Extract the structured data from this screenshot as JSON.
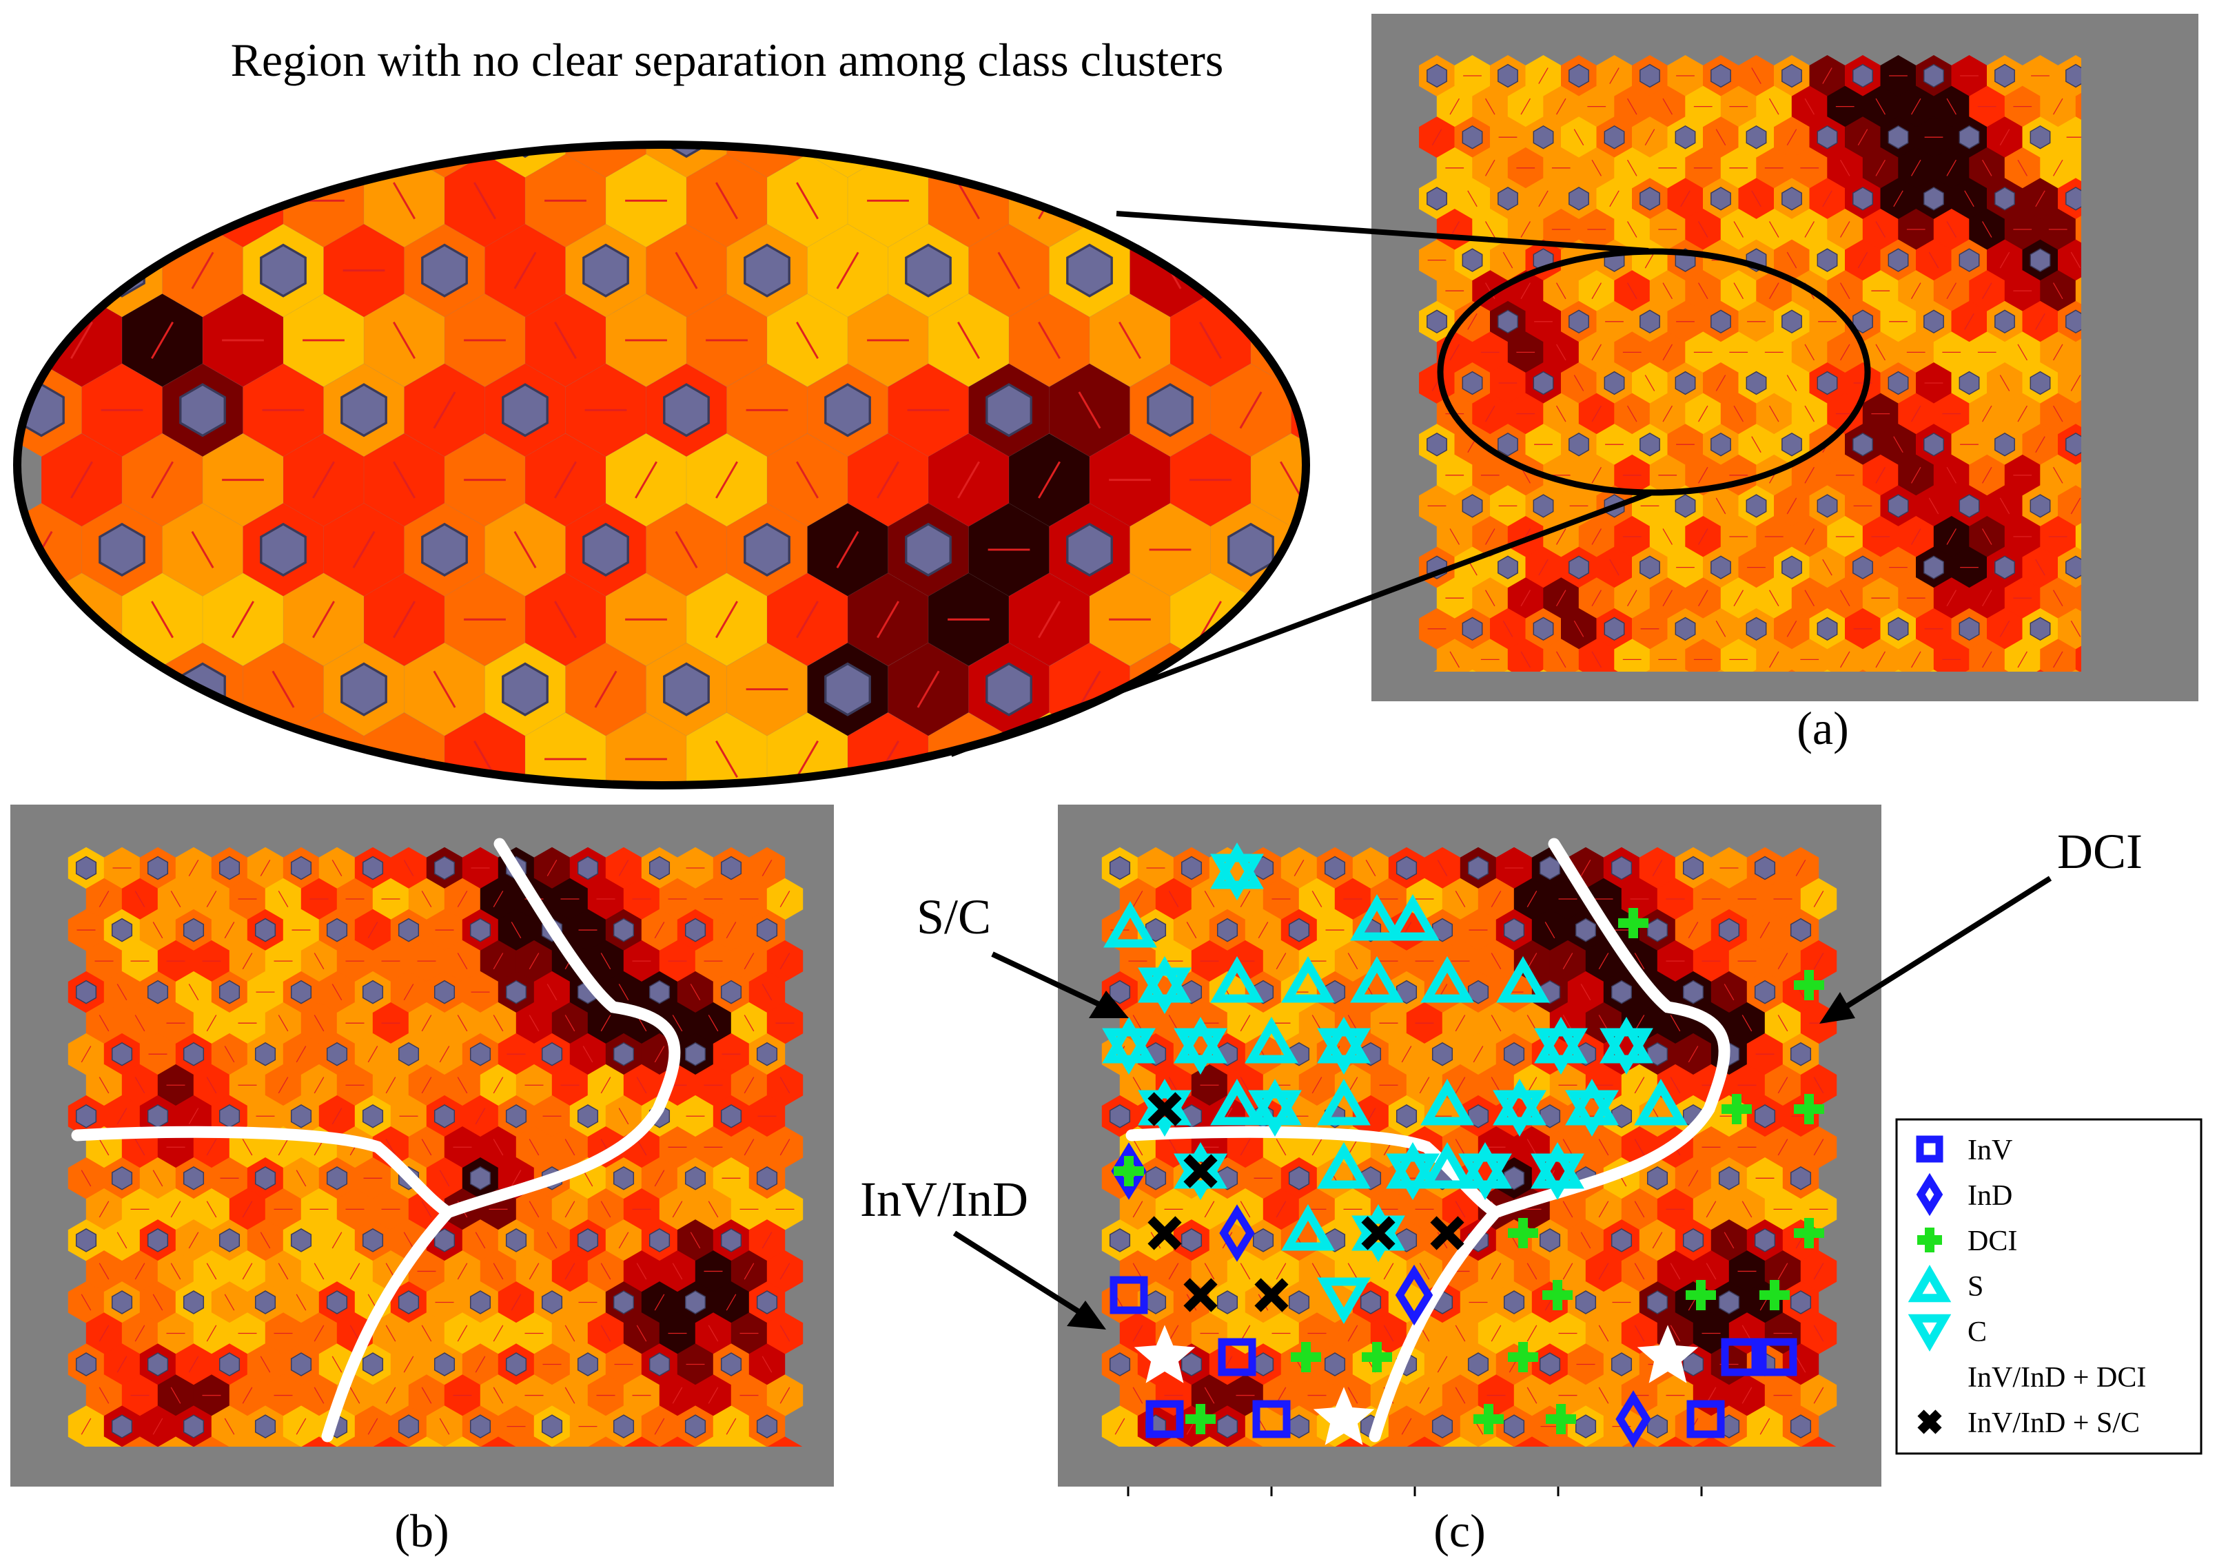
{
  "figure": {
    "zoom_caption": "Region with no clear separation among class clusters",
    "panels": [
      {
        "id": "a",
        "label": "(a)"
      },
      {
        "id": "b",
        "label": "(b)"
      },
      {
        "id": "c",
        "label": "(c)"
      }
    ]
  },
  "annotations": {
    "sc": "S/C",
    "dci": "DCI",
    "invind": "InV/InD"
  },
  "legend": {
    "items": [
      {
        "label": "InV",
        "marker": "square",
        "color": "#1a1aff"
      },
      {
        "label": "InD",
        "marker": "diamond",
        "color": "#1a1aff"
      },
      {
        "label": "DCI",
        "marker": "plus",
        "color": "#1ee01e"
      },
      {
        "label": "S",
        "marker": "triangle-up",
        "color": "#00f0f0"
      },
      {
        "label": "C",
        "marker": "triangle-down",
        "color": "#00f0f0"
      },
      {
        "label": "InV/InD + DCI",
        "marker": "star",
        "color": "#ffffff"
      },
      {
        "label": "InV/InD + S/C",
        "marker": "x",
        "color": "#000000"
      }
    ]
  },
  "colors": {
    "panel_bg": "#808080",
    "node": "#6b6b9a",
    "boundary": "#ffffff",
    "heat_scale": [
      "#ffff00",
      "#ffe000",
      "#ffc000",
      "#ff9800",
      "#ff6a00",
      "#ff2a00",
      "#c80000",
      "#780000",
      "#2a0000"
    ]
  }
}
